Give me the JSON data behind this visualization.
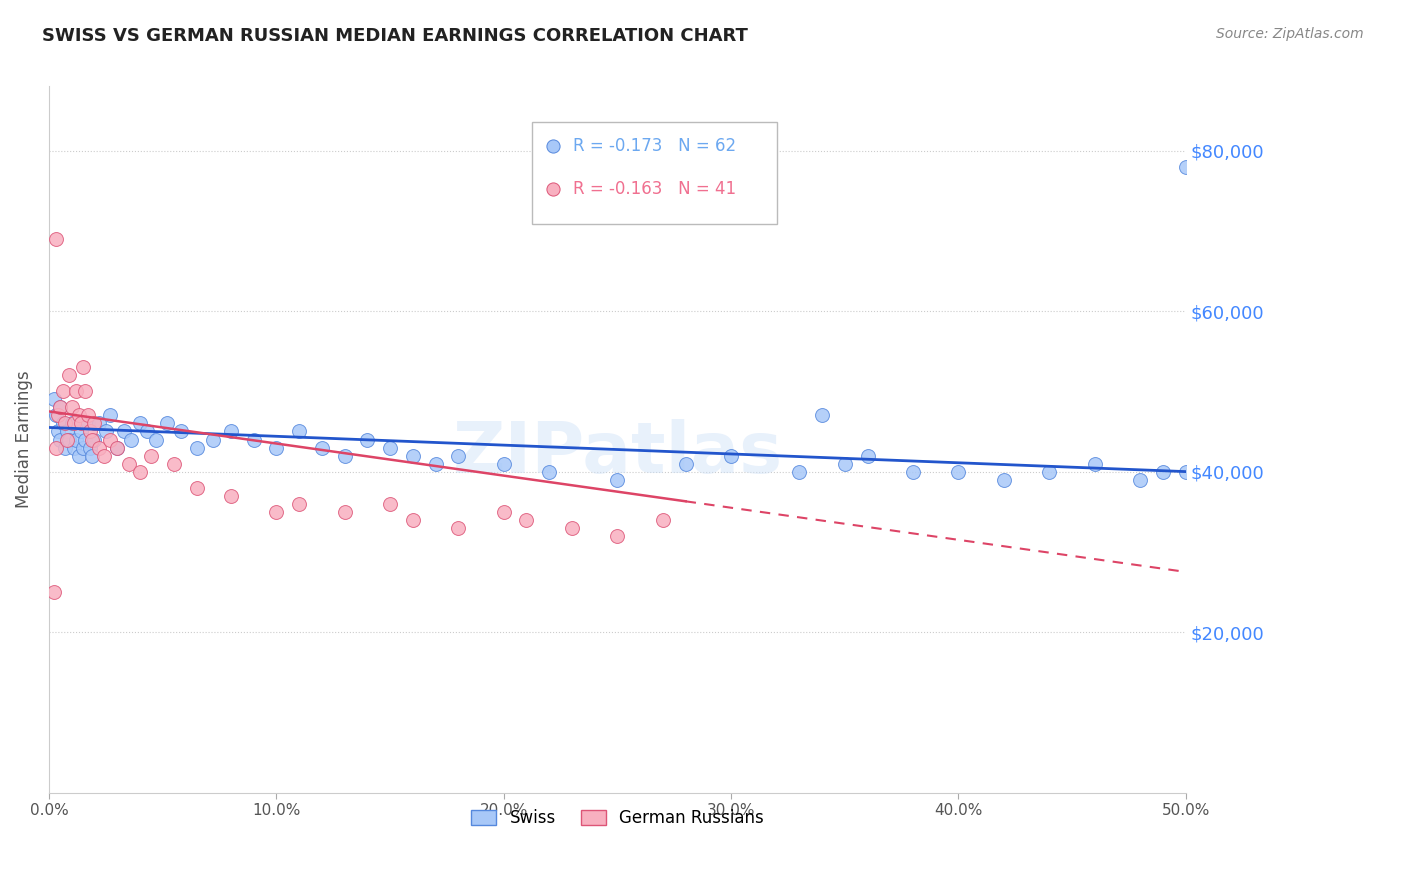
{
  "title": "SWISS VS GERMAN RUSSIAN MEDIAN EARNINGS CORRELATION CHART",
  "source": "Source: ZipAtlas.com",
  "ylabel": "Median Earnings",
  "ytick_labels": [
    "$20,000",
    "$40,000",
    "$60,000",
    "$80,000"
  ],
  "ytick_values": [
    20000,
    40000,
    60000,
    80000
  ],
  "legend_labels": [
    "Swiss",
    "German Russians"
  ],
  "legend_r_n": [
    {
      "r": -0.173,
      "n": 62,
      "color": "#6ca8f0"
    },
    {
      "r": -0.163,
      "n": 41,
      "color": "#f07090"
    }
  ],
  "swiss_color": "#a8c8f8",
  "german_russian_color": "#f8b0c0",
  "swiss_edge_color": "#5588dd",
  "german_russian_edge_color": "#dd5577",
  "swiss_line_color": "#2255cc",
  "german_russian_line_color": "#dd4466",
  "background": "#ffffff",
  "grid_color": "#cccccc",
  "watermark": "ZIPatlas",
  "xmin": 0.0,
  "xmax": 0.5,
  "ymin": 0,
  "ymax": 88000,
  "swiss_x": [
    0.002,
    0.003,
    0.004,
    0.005,
    0.005,
    0.006,
    0.007,
    0.008,
    0.009,
    0.01,
    0.011,
    0.012,
    0.013,
    0.014,
    0.015,
    0.016,
    0.017,
    0.018,
    0.019,
    0.02,
    0.022,
    0.025,
    0.027,
    0.03,
    0.033,
    0.036,
    0.04,
    0.043,
    0.047,
    0.052,
    0.058,
    0.065,
    0.072,
    0.08,
    0.09,
    0.1,
    0.11,
    0.12,
    0.13,
    0.14,
    0.15,
    0.16,
    0.17,
    0.18,
    0.2,
    0.22,
    0.25,
    0.28,
    0.3,
    0.33,
    0.35,
    0.36,
    0.38,
    0.4,
    0.42,
    0.44,
    0.46,
    0.48,
    0.49,
    0.5,
    0.5,
    0.34
  ],
  "swiss_y": [
    49000,
    47000,
    45000,
    48000,
    44000,
    46000,
    43000,
    45000,
    44000,
    46000,
    43000,
    44000,
    42000,
    45000,
    43000,
    44000,
    46000,
    43000,
    42000,
    44000,
    46000,
    45000,
    47000,
    43000,
    45000,
    44000,
    46000,
    45000,
    44000,
    46000,
    45000,
    43000,
    44000,
    45000,
    44000,
    43000,
    45000,
    43000,
    42000,
    44000,
    43000,
    42000,
    41000,
    42000,
    41000,
    40000,
    39000,
    41000,
    42000,
    40000,
    41000,
    42000,
    40000,
    40000,
    39000,
    40000,
    41000,
    39000,
    40000,
    40000,
    78000,
    47000
  ],
  "german_russian_x": [
    0.002,
    0.003,
    0.004,
    0.005,
    0.006,
    0.007,
    0.008,
    0.009,
    0.01,
    0.011,
    0.012,
    0.013,
    0.014,
    0.015,
    0.016,
    0.017,
    0.018,
    0.019,
    0.02,
    0.022,
    0.024,
    0.027,
    0.03,
    0.035,
    0.04,
    0.045,
    0.055,
    0.065,
    0.08,
    0.1,
    0.11,
    0.13,
    0.15,
    0.16,
    0.18,
    0.2,
    0.21,
    0.23,
    0.25,
    0.27,
    0.003
  ],
  "german_russian_y": [
    25000,
    43000,
    47000,
    48000,
    50000,
    46000,
    44000,
    52000,
    48000,
    46000,
    50000,
    47000,
    46000,
    53000,
    50000,
    47000,
    45000,
    44000,
    46000,
    43000,
    42000,
    44000,
    43000,
    41000,
    40000,
    42000,
    41000,
    38000,
    37000,
    35000,
    36000,
    35000,
    36000,
    34000,
    33000,
    35000,
    34000,
    33000,
    32000,
    34000,
    69000
  ],
  "gr_line_solid_end": 0.28,
  "swiss_line_intercept": 45500,
  "swiss_line_slope": -11000,
  "gr_line_intercept": 47500,
  "gr_line_slope": -40000
}
